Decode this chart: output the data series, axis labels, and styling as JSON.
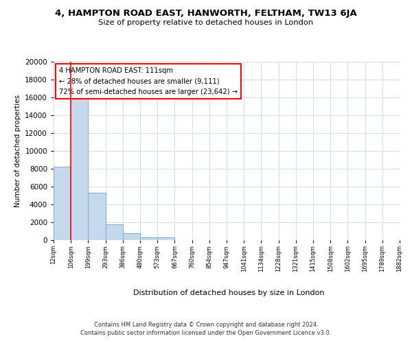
{
  "title": "4, HAMPTON ROAD EAST, HANWORTH, FELTHAM, TW13 6JA",
  "subtitle": "Size of property relative to detached houses in London",
  "xlabel": "Distribution of detached houses by size in London",
  "ylabel": "Number of detached properties",
  "bar_color": "#c6d9ec",
  "bar_edge_color": "#7aafd4",
  "background_color": "#ffffff",
  "grid_color": "#d0dfe8",
  "bin_labels": [
    "12sqm",
    "106sqm",
    "199sqm",
    "293sqm",
    "386sqm",
    "480sqm",
    "573sqm",
    "667sqm",
    "760sqm",
    "854sqm",
    "947sqm",
    "1041sqm",
    "1134sqm",
    "1228sqm",
    "1321sqm",
    "1415sqm",
    "1508sqm",
    "1602sqm",
    "1695sqm",
    "1789sqm",
    "1882sqm"
  ],
  "bar_heights": [
    8200,
    16600,
    5300,
    1750,
    750,
    280,
    280,
    0,
    0,
    0,
    0,
    0,
    0,
    0,
    0,
    0,
    0,
    0,
    0,
    0
  ],
  "ylim": [
    0,
    20000
  ],
  "yticks": [
    0,
    2000,
    4000,
    6000,
    8000,
    10000,
    12000,
    14000,
    16000,
    18000,
    20000
  ],
  "property_line_x": 1.0,
  "property_line_label": "4 HAMPTON ROAD EAST: 111sqm",
  "annotation_smaller": "← 28% of detached houses are smaller (9,111)",
  "annotation_larger": "72% of semi-detached houses are larger (23,642) →",
  "footer_line1": "Contains HM Land Registry data © Crown copyright and database right 2024.",
  "footer_line2": "Contains public sector information licensed under the Open Government Licence v3.0."
}
